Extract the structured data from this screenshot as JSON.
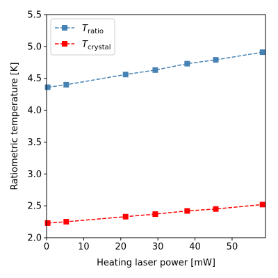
{
  "chart_data": {
    "type": "line",
    "xlabel": "Heating laser power [mW]",
    "ylabel": "Ratiometric temperature [K]",
    "xlim": [
      0,
      59
    ],
    "ylim": [
      2.0,
      5.5
    ],
    "x_ticks": [
      "0",
      "10",
      "20",
      "30",
      "40",
      "50"
    ],
    "x_tick_values": [
      0,
      10,
      20,
      30,
      40,
      50
    ],
    "y_ticks": [
      "2.0",
      "2.5",
      "3.0",
      "3.5",
      "4.0",
      "4.5",
      "5.0",
      "5.5"
    ],
    "y_tick_values": [
      2.0,
      2.5,
      3.0,
      3.5,
      4.0,
      4.5,
      5.0,
      5.5
    ],
    "grid": false,
    "legend_position": "top-left",
    "series": [
      {
        "name_main": "T",
        "name_sub": "ratio",
        "color": "#4682b4",
        "marker": "square",
        "linestyle": "dashed",
        "x": [
          0.3,
          5.3,
          21.3,
          29.3,
          37.9,
          45.6,
          58.2
        ],
        "y": [
          4.36,
          4.4,
          4.56,
          4.63,
          4.73,
          4.79,
          4.91
        ]
      },
      {
        "name_main": "T",
        "name_sub": "crystal",
        "color": "#ff0000",
        "marker": "square",
        "linestyle": "dashed",
        "x": [
          0.3,
          5.3,
          21.3,
          29.3,
          37.9,
          45.6,
          58.2
        ],
        "y": [
          2.23,
          2.25,
          2.33,
          2.37,
          2.42,
          2.45,
          2.52
        ]
      }
    ]
  }
}
